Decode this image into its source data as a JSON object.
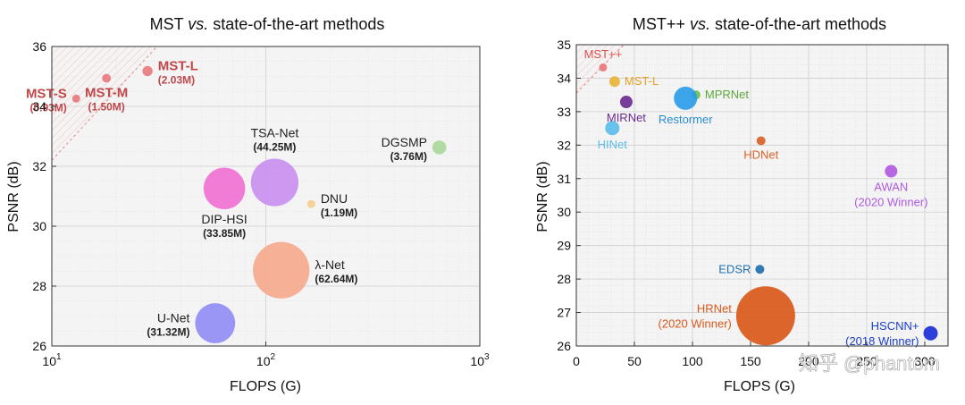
{
  "chart_data": [
    {
      "type": "scatter",
      "subtype": "bubble",
      "title": "MST vs. state-of-the-art methods",
      "title_parts": [
        "MST ",
        "vs.",
        " state-of-the-art methods"
      ],
      "xlabel": "FLOPS (G)",
      "ylabel": "PSNR (dB)",
      "x_scale": "log",
      "xlim": [
        10,
        1000
      ],
      "ylim": [
        26,
        36
      ],
      "xticks": [
        10,
        100,
        1000
      ],
      "xtick_labels": [
        [
          "10",
          "1"
        ],
        [
          "10",
          "2"
        ],
        [
          "10",
          "3"
        ]
      ],
      "yticks": [
        26,
        28,
        30,
        32,
        34,
        36
      ],
      "ytick_labels": [
        "26",
        "28",
        "30",
        "32",
        "34",
        "36"
      ],
      "grid": true,
      "points": [
        {
          "name": "MST-S",
          "params": "(0.93M)",
          "flops": 13,
          "psnr": 34.26,
          "size_m": 0.93,
          "color": "#e8787c",
          "label_color": "#c0474a",
          "label_side": "left"
        },
        {
          "name": "MST-M",
          "params": "(1.50M)",
          "flops": 18,
          "psnr": 34.94,
          "size_m": 1.5,
          "color": "#e8787c",
          "label_color": "#c0474a",
          "label_side": "below"
        },
        {
          "name": "MST-L",
          "params": "(2.03M)",
          "flops": 28,
          "psnr": 35.18,
          "size_m": 2.03,
          "color": "#e8787c",
          "label_color": "#c0474a",
          "label_side": "right"
        },
        {
          "name": "DGSMP",
          "params": "(3.76M)",
          "flops": 647,
          "psnr": 32.63,
          "size_m": 3.76,
          "color": "#a8d89a",
          "label_color": "#222222",
          "label_side": "left"
        },
        {
          "name": "TSA-Net",
          "params": "(44.25M)",
          "flops": 110,
          "psnr": 31.46,
          "size_m": 44.25,
          "color": "#c98ef0",
          "label_color": "#222222",
          "label_side": "above"
        },
        {
          "name": "DIP-HSI",
          "params": "(33.85M)",
          "flops": 64,
          "psnr": 31.26,
          "size_m": 33.85,
          "color": "#f06fd2",
          "label_color": "#222222",
          "label_side": "below"
        },
        {
          "name": "DNU",
          "params": "(1.19M)",
          "flops": 163,
          "psnr": 30.74,
          "size_m": 1.19,
          "color": "#f5cf8c",
          "label_color": "#222222",
          "label_side": "right"
        },
        {
          "name": "λ-Net",
          "params": "(62.64M)",
          "flops": 118,
          "psnr": 28.53,
          "size_m": 62.64,
          "color": "#f5a88c",
          "label_color": "#222222",
          "label_side": "right"
        },
        {
          "name": "U-Net",
          "params": "(31.32M)",
          "flops": 58,
          "psnr": 26.76,
          "size_m": 31.32,
          "color": "#8f8cf5",
          "label_color": "#222222",
          "label_side": "left"
        }
      ]
    },
    {
      "type": "scatter",
      "subtype": "bubble",
      "title": "MST++ vs. state-of-the-art methods",
      "title_parts": [
        "MST++ ",
        "vs.",
        " state-of-the-art methods"
      ],
      "xlabel": "FLOPS (G)",
      "ylabel": "PSNR (dB)",
      "x_scale": "linear",
      "xlim": [
        0,
        320
      ],
      "ylim": [
        26,
        35
      ],
      "xticks": [
        0,
        50,
        100,
        150,
        200,
        250,
        300
      ],
      "xtick_labels": [
        "0",
        "50",
        "100",
        "150",
        "200",
        "250",
        "300"
      ],
      "yticks": [
        26,
        27,
        28,
        29,
        30,
        31,
        32,
        33,
        34,
        35
      ],
      "ytick_labels": [
        "26",
        "27",
        "28",
        "29",
        "30",
        "31",
        "32",
        "33",
        "34",
        "35"
      ],
      "grid": true,
      "points": [
        {
          "name": "MST++",
          "sub": "",
          "flops": 23,
          "psnr": 34.32,
          "size": 4.5,
          "color": "#e8787c",
          "label_color": "#d9534f",
          "label_side": "above"
        },
        {
          "name": "MST-L",
          "sub": "",
          "flops": 33,
          "psnr": 33.9,
          "size": 6,
          "color": "#e8b43a",
          "label_color": "#e8a020",
          "label_side": "right"
        },
        {
          "name": "MIRNet",
          "sub": "",
          "flops": 43,
          "psnr": 33.29,
          "size": 7,
          "color": "#6b2c8f",
          "label_color": "#6b2c8f",
          "label_side": "below"
        },
        {
          "name": "HINet",
          "sub": "",
          "flops": 31,
          "psnr": 32.51,
          "size": 8,
          "color": "#5bbde8",
          "label_color": "#5bbde8",
          "label_side": "below"
        },
        {
          "name": "MPRNet",
          "sub": "",
          "flops": 103,
          "psnr": 33.5,
          "size": 5,
          "color": "#6cc04a",
          "label_color": "#5aa83a",
          "label_side": "right"
        },
        {
          "name": "Restormer",
          "sub": "",
          "flops": 94,
          "psnr": 33.4,
          "size": 13,
          "color": "#2a9ce8",
          "label_color": "#2a8cd0",
          "label_side": "below"
        },
        {
          "name": "HDNet",
          "sub": "",
          "flops": 159,
          "psnr": 32.13,
          "size": 5,
          "color": "#d9622a",
          "label_color": "#d9622a",
          "label_side": "below"
        },
        {
          "name": "AWAN",
          "sub": "(2020 Winner)",
          "flops": 271,
          "psnr": 31.22,
          "size": 7,
          "color": "#b05ae0",
          "label_color": "#b05ae0",
          "label_side": "below"
        },
        {
          "name": "EDSR",
          "sub": "",
          "flops": 158,
          "psnr": 28.29,
          "size": 5,
          "color": "#1f6fb0",
          "label_color": "#1f6fb0",
          "label_side": "left"
        },
        {
          "name": "HRNet",
          "sub": "(2020 Winner)",
          "flops": 163,
          "psnr": 26.9,
          "size": 33,
          "color": "#d9581a",
          "label_color": "#d9581a",
          "label_side": "left"
        },
        {
          "name": "HSCNN+",
          "sub": "(2018 Winner)",
          "flops": 305,
          "psnr": 26.38,
          "size": 8,
          "color": "#1a2fd8",
          "label_color": "#1a3fc8",
          "label_side": "left"
        }
      ]
    }
  ],
  "watermark": "知乎 @phantom"
}
